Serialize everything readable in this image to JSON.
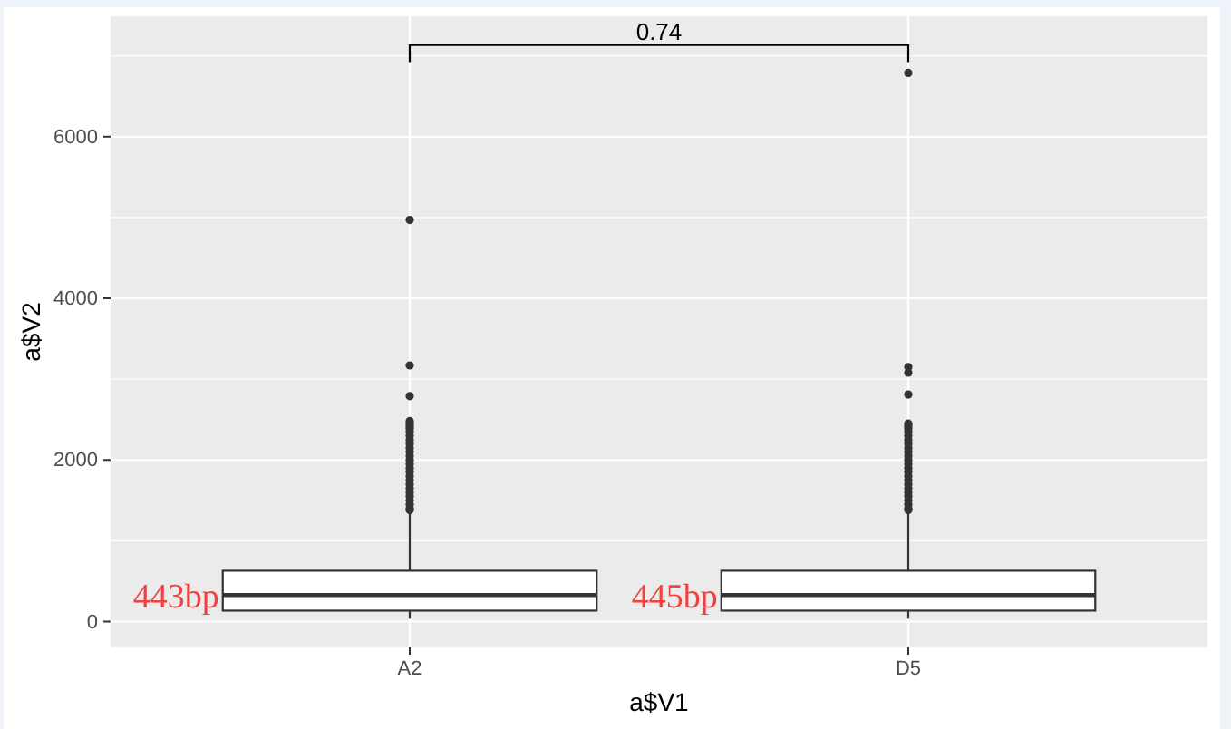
{
  "chart_data": {
    "type": "box",
    "xlabel": "a$V1",
    "ylabel": "a$V2",
    "categories": [
      "A2",
      "D5"
    ],
    "boxes": [
      {
        "low": 35,
        "q1": 135,
        "median": 328,
        "q3": 629,
        "high": 1360,
        "outliers": [
          4970,
          3170,
          2790,
          2480,
          2450,
          2420,
          2390,
          2350,
          2300,
          2250,
          2200,
          2150,
          2100,
          2050,
          2000,
          1950,
          1900,
          1850,
          1800,
          1750,
          1700,
          1650,
          1600,
          1550,
          1500,
          1450,
          1400,
          1380
        ]
      },
      {
        "low": 35,
        "q1": 135,
        "median": 328,
        "q3": 629,
        "high": 1360,
        "outliers": [
          6790,
          3150,
          3080,
          2810,
          2450,
          2420,
          2390,
          2350,
          2300,
          2250,
          2200,
          2150,
          2100,
          2050,
          2000,
          1950,
          1900,
          1850,
          1800,
          1750,
          1700,
          1650,
          1600,
          1550,
          1500,
          1450,
          1400,
          1380
        ]
      }
    ],
    "ylim": [
      -320,
      7490
    ],
    "yticks": [
      0,
      2000,
      4000,
      6000
    ],
    "grid": true,
    "annotations": [
      "443bp",
      "445bp",
      "0.74"
    ]
  }
}
